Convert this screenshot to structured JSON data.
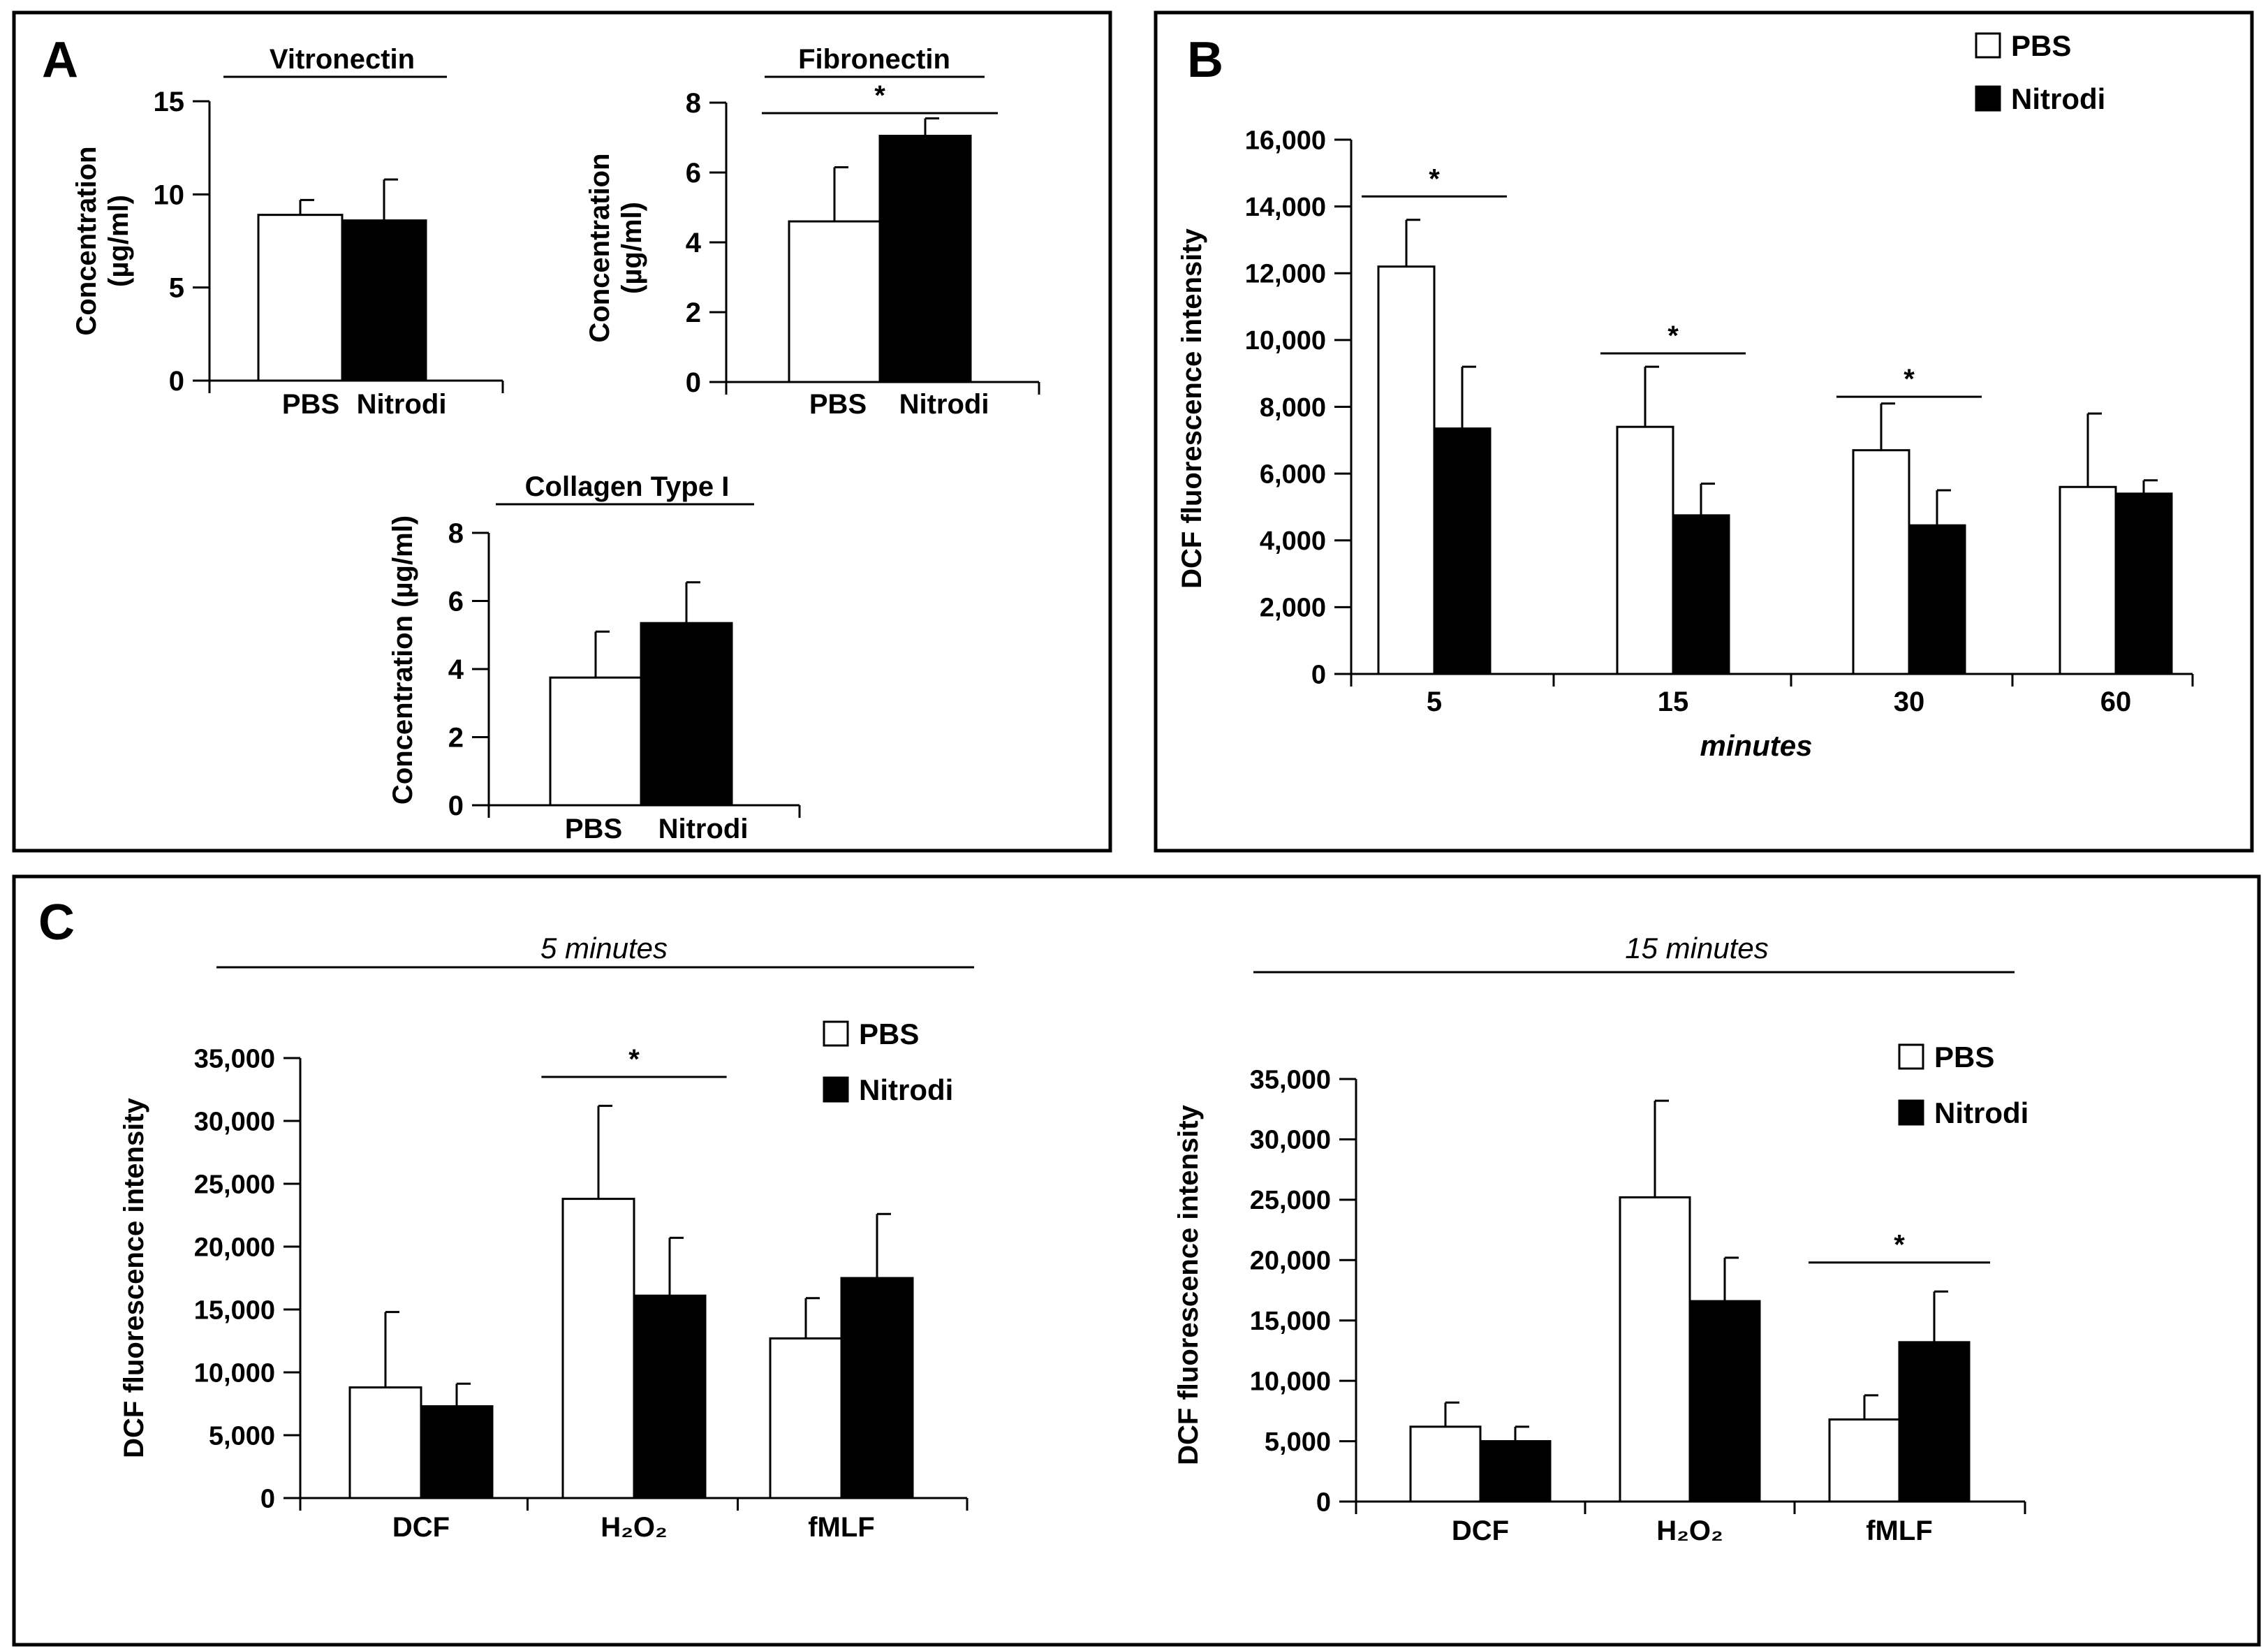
{
  "panels": {
    "A": {
      "letter": "A"
    },
    "B": {
      "letter": "B"
    },
    "C": {
      "letter": "C",
      "subtitle_left": "5 minutes",
      "subtitle_right": "15 minutes"
    }
  },
  "colors": {
    "pbs": "#ffffff",
    "nitrodi": "#000000",
    "stroke": "#000000"
  },
  "chart_data": [
    {
      "id": "vitronectin",
      "panel": "A",
      "type": "bar",
      "title": "Vitronectin",
      "ylabel": [
        "Concentration",
        "(µg/ml)"
      ],
      "ylim": [
        0,
        15
      ],
      "yticks": [
        0,
        5,
        10,
        15
      ],
      "ytick_labels": [
        "0",
        "5",
        "10",
        "15"
      ],
      "categories": [
        ""
      ],
      "category_labels": [],
      "series": [
        {
          "name": "PBS",
          "values": [
            8.9
          ],
          "errors": [
            0.8
          ]
        },
        {
          "name": "Nitrodi",
          "values": [
            8.6
          ],
          "errors": [
            2.2
          ]
        }
      ],
      "series_labels_under": [
        "PBS",
        "Nitrodi"
      ],
      "significance": []
    },
    {
      "id": "fibronectin",
      "panel": "A",
      "type": "bar",
      "title": "Fibronectin",
      "ylabel": [
        "Concentration",
        "(µg/ml)"
      ],
      "ylim": [
        0,
        8
      ],
      "yticks": [
        0,
        2,
        4,
        6,
        8
      ],
      "ytick_labels": [
        "0",
        "2",
        "4",
        "6",
        "8"
      ],
      "categories": [
        ""
      ],
      "category_labels": [],
      "series": [
        {
          "name": "PBS",
          "values": [
            4.6
          ],
          "errors": [
            1.55
          ]
        },
        {
          "name": "Nitrodi",
          "values": [
            7.05
          ],
          "errors": [
            0.5
          ]
        }
      ],
      "series_labels_under": [
        "PBS",
        "Nitrodi"
      ],
      "significance": [
        {
          "group": 0,
          "label": "*",
          "y": 7.7
        }
      ]
    },
    {
      "id": "collagen",
      "panel": "A",
      "type": "bar",
      "title": "Collagen Type I",
      "ylabel": [
        "Concentration  (µg/ml)"
      ],
      "ylim": [
        0,
        8
      ],
      "yticks": [
        0,
        2,
        4,
        6,
        8
      ],
      "ytick_labels": [
        "0",
        "2",
        "4",
        "6",
        "8"
      ],
      "categories": [
        ""
      ],
      "category_labels": [],
      "series": [
        {
          "name": "PBS",
          "values": [
            3.75
          ],
          "errors": [
            1.35
          ]
        },
        {
          "name": "Nitrodi",
          "values": [
            5.35
          ],
          "errors": [
            1.2
          ]
        }
      ],
      "series_labels_under": [
        "PBS",
        "Nitrodi"
      ],
      "significance": []
    },
    {
      "id": "dcf_time",
      "panel": "B",
      "type": "bar",
      "title": "",
      "xlabel": "minutes",
      "ylabel": [
        "DCF fluorescence  intensity"
      ],
      "ylim": [
        0,
        16000
      ],
      "yticks": [
        0,
        2000,
        4000,
        6000,
        8000,
        10000,
        12000,
        14000,
        16000
      ],
      "ytick_labels": [
        "0",
        "2,000",
        "4,000",
        "6,000",
        "8,000",
        "10,000",
        "12,000",
        "14,000",
        "16,000"
      ],
      "categories": [
        "5",
        "15",
        "30",
        "60"
      ],
      "category_labels": [
        "5",
        "15",
        "30",
        "60"
      ],
      "series": [
        {
          "name": "PBS",
          "values": [
            12200,
            7400,
            6700,
            5600
          ],
          "errors": [
            1400,
            1800,
            1400,
            2200
          ]
        },
        {
          "name": "Nitrodi",
          "values": [
            7350,
            4750,
            4450,
            5400
          ],
          "errors": [
            1850,
            950,
            1050,
            400
          ]
        }
      ],
      "legend": [
        "PBS",
        "Nitrodi"
      ],
      "significance": [
        {
          "group": 0,
          "label": "*",
          "y": 14300
        },
        {
          "group": 1,
          "label": "*",
          "y": 9600
        },
        {
          "group": 2,
          "label": "*",
          "y": 8300
        }
      ]
    },
    {
      "id": "dcf_5min",
      "panel": "C",
      "type": "bar",
      "title": "",
      "ylabel": [
        "DCF fluorescence intensity"
      ],
      "ylim": [
        0,
        35000
      ],
      "yticks": [
        0,
        5000,
        10000,
        15000,
        20000,
        25000,
        30000,
        35000
      ],
      "ytick_labels": [
        "0",
        "5,000",
        "10,000",
        "15,000",
        "20,000",
        "25,000",
        "30,000",
        "35,000"
      ],
      "categories": [
        "DCF",
        "H2O2",
        "fMLF"
      ],
      "category_labels": [
        "DCF",
        "H₂O₂",
        "fMLF"
      ],
      "series": [
        {
          "name": "PBS",
          "values": [
            8800,
            23800,
            12700
          ],
          "errors": [
            6000,
            7400,
            3200
          ]
        },
        {
          "name": "Nitrodi",
          "values": [
            7300,
            16100,
            17500
          ],
          "errors": [
            1800,
            4600,
            5100
          ]
        }
      ],
      "legend": [
        "PBS",
        "Nitrodi"
      ],
      "significance": [
        {
          "group": 1,
          "label": "*",
          "y": 33500
        }
      ]
    },
    {
      "id": "dcf_15min",
      "panel": "C",
      "type": "bar",
      "title": "",
      "ylabel": [
        "DCF fluorescence intensity"
      ],
      "ylim": [
        0,
        35000
      ],
      "yticks": [
        0,
        5000,
        10000,
        15000,
        20000,
        25000,
        30000,
        35000
      ],
      "ytick_labels": [
        "0",
        "5,000",
        "10,000",
        "15,000",
        "20,000",
        "25,000",
        "30,000",
        "35,000"
      ],
      "categories": [
        "DCF",
        "H2O2",
        "fMLF"
      ],
      "category_labels": [
        "DCF",
        "H₂O₂",
        "fMLF"
      ],
      "series": [
        {
          "name": "PBS",
          "values": [
            6200,
            25200,
            6800
          ],
          "errors": [
            2000,
            8000,
            2000
          ]
        },
        {
          "name": "Nitrodi",
          "values": [
            5000,
            16600,
            13200
          ],
          "errors": [
            1200,
            3600,
            4200
          ]
        }
      ],
      "legend": [
        "PBS",
        "Nitrodi"
      ],
      "significance": [
        {
          "group": 2,
          "label": "*",
          "y": 19800
        }
      ]
    }
  ]
}
